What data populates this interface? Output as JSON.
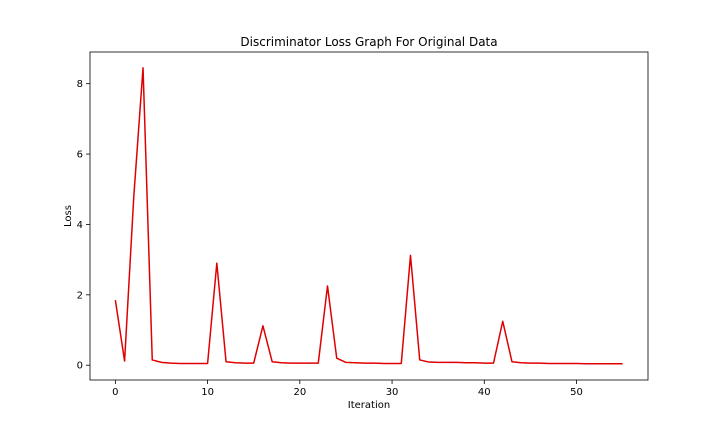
{
  "chart_data": {
    "type": "line",
    "title": "Discriminator Loss Graph For Original Data",
    "xlabel": "Iteration",
    "ylabel": "Loss",
    "xlim": [
      -2.75,
      57.75
    ],
    "ylim": [
      -0.42,
      8.9
    ],
    "xticks": [
      0,
      10,
      20,
      30,
      40,
      50
    ],
    "yticks": [
      0,
      2,
      4,
      6,
      8
    ],
    "grid": false,
    "legend": "none",
    "series": [
      {
        "name": "Discriminator Loss",
        "color": "#e00000",
        "x": [
          0,
          1,
          2,
          3,
          4,
          5,
          6,
          7,
          8,
          9,
          10,
          11,
          12,
          13,
          14,
          15,
          16,
          17,
          18,
          19,
          20,
          21,
          22,
          23,
          24,
          25,
          26,
          27,
          28,
          29,
          30,
          31,
          32,
          33,
          34,
          35,
          36,
          37,
          38,
          39,
          40,
          41,
          42,
          43,
          44,
          45,
          46,
          47,
          48,
          49,
          50,
          51,
          52,
          53,
          54,
          55
        ],
        "y": [
          1.85,
          0.12,
          4.8,
          8.45,
          0.15,
          0.08,
          0.06,
          0.05,
          0.05,
          0.05,
          0.05,
          2.9,
          0.1,
          0.07,
          0.06,
          0.06,
          1.12,
          0.1,
          0.07,
          0.06,
          0.06,
          0.06,
          0.06,
          2.25,
          0.2,
          0.08,
          0.07,
          0.06,
          0.06,
          0.05,
          0.05,
          0.05,
          3.12,
          0.15,
          0.09,
          0.08,
          0.08,
          0.08,
          0.07,
          0.07,
          0.06,
          0.06,
          1.25,
          0.1,
          0.07,
          0.06,
          0.06,
          0.05,
          0.05,
          0.05,
          0.05,
          0.04,
          0.04,
          0.04,
          0.04,
          0.04
        ]
      }
    ]
  }
}
